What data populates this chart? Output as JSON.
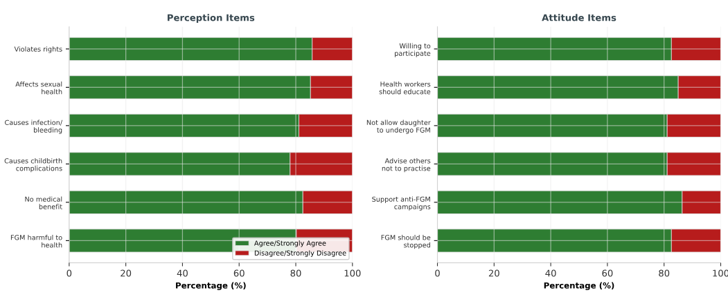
{
  "chart_data": [
    {
      "type": "bar",
      "orientation": "horizontal",
      "stacked": true,
      "title": "Perception Items",
      "xlabel": "Percentage (%)",
      "categories": [
        "Violates rights",
        "Affects sexual\nhealth",
        "Causes infection/\nbleeding",
        "Causes childbirth\ncomplications",
        "No medical\nbenefit",
        "FGM harmful to\nhealth"
      ],
      "series": [
        {
          "name": "Agree/Strongly Agree",
          "color": "#2e7d32",
          "values": [
            85.8,
            85.2,
            81.1,
            78.0,
            82.5,
            80.2
          ]
        },
        {
          "name": "Disagree/Strongly Disagree",
          "color": "#b71c1c",
          "values": [
            14.2,
            14.8,
            18.9,
            22.0,
            17.5,
            19.8
          ]
        }
      ],
      "xlim": [
        0,
        100
      ],
      "xticks": [
        0,
        20,
        40,
        60,
        80,
        100
      ],
      "grid": true,
      "legend": "bottom right"
    },
    {
      "type": "bar",
      "orientation": "horizontal",
      "stacked": true,
      "title": "Attitude Items",
      "xlabel": "Percentage (%)",
      "categories": [
        "Willing to\nparticipate",
        "Health workers\nshould educate",
        "Not allow daughter\nto undergo FGM",
        "Advise others\nnot to practise",
        "Support anti-FGM\ncampaigns",
        "FGM should be\nstopped"
      ],
      "series": [
        {
          "color": "#2e7d32",
          "values": [
            82.6,
            85.0,
            81.1,
            81.1,
            86.4,
            82.6
          ]
        },
        {
          "color": "#b71c1c",
          "values": [
            17.4,
            15.0,
            18.9,
            18.9,
            13.6,
            17.4
          ]
        }
      ],
      "xlim": [
        0,
        100
      ],
      "xticks": [
        0,
        20,
        40,
        60,
        80,
        100
      ],
      "grid": true
    }
  ]
}
